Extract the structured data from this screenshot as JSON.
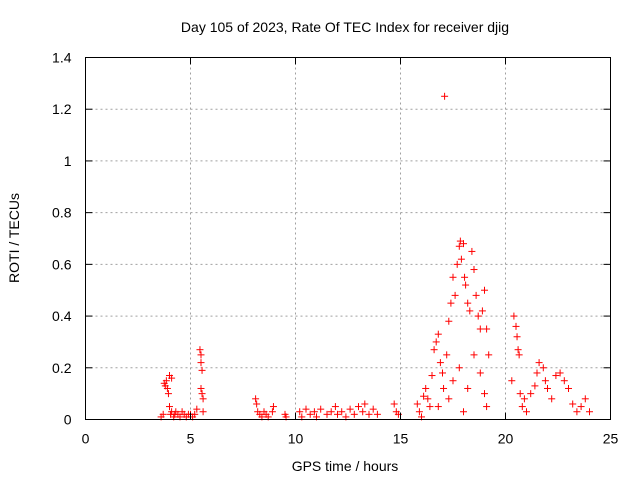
{
  "chart_data": {
    "type": "scatter",
    "title": "Day 105 of 2023, Rate Of TEC Index for receiver djig",
    "xlabel": "GPS time / hours",
    "ylabel": "ROTI / TECUs",
    "xlim": [
      0,
      25
    ],
    "ylim": [
      0,
      1.4
    ],
    "x_ticks": [
      "0",
      "5",
      "10",
      "15",
      "20",
      "25"
    ],
    "y_ticks": [
      "0",
      "0.2",
      "0.4",
      "0.6",
      "0.8",
      "1",
      "1.2",
      "1.4"
    ],
    "grid": true,
    "marker": "+",
    "color": "#ff0000",
    "series": [
      {
        "points": [
          [
            3.6,
            0.01
          ],
          [
            3.7,
            0.02
          ],
          [
            3.75,
            0.14
          ],
          [
            3.8,
            0.13
          ],
          [
            3.85,
            0.15
          ],
          [
            3.9,
            0.12
          ],
          [
            3.95,
            0.1
          ],
          [
            4.0,
            0.17
          ],
          [
            4.0,
            0.05
          ],
          [
            4.05,
            0.02
          ],
          [
            4.1,
            0.16
          ],
          [
            4.1,
            0.03
          ],
          [
            4.2,
            0.01
          ],
          [
            4.25,
            0.02
          ],
          [
            4.3,
            0.03
          ],
          [
            4.4,
            0.02
          ],
          [
            4.5,
            0.01
          ],
          [
            4.6,
            0.03
          ],
          [
            4.7,
            0.02
          ],
          [
            4.8,
            0.01
          ],
          [
            4.9,
            0.02
          ],
          [
            5.0,
            0.02
          ],
          [
            5.1,
            0.01
          ],
          [
            5.2,
            0.02
          ],
          [
            5.3,
            0.04
          ],
          [
            5.45,
            0.27
          ],
          [
            5.5,
            0.25
          ],
          [
            5.5,
            0.22
          ],
          [
            5.55,
            0.19
          ],
          [
            5.5,
            0.12
          ],
          [
            5.55,
            0.1
          ],
          [
            5.6,
            0.08
          ],
          [
            5.6,
            0.03
          ],
          [
            8.1,
            0.08
          ],
          [
            8.15,
            0.06
          ],
          [
            8.2,
            0.03
          ],
          [
            8.3,
            0.02
          ],
          [
            8.4,
            0.01
          ],
          [
            8.5,
            0.03
          ],
          [
            8.6,
            0.02
          ],
          [
            8.7,
            0.01
          ],
          [
            8.9,
            0.03
          ],
          [
            8.95,
            0.05
          ],
          [
            9.5,
            0.02
          ],
          [
            9.55,
            0.01
          ],
          [
            10.2,
            0.03
          ],
          [
            10.3,
            0.01
          ],
          [
            10.5,
            0.04
          ],
          [
            10.7,
            0.02
          ],
          [
            10.9,
            0.03
          ],
          [
            11.0,
            0.01
          ],
          [
            11.2,
            0.04
          ],
          [
            11.5,
            0.02
          ],
          [
            11.7,
            0.03
          ],
          [
            11.9,
            0.05
          ],
          [
            12.0,
            0.02
          ],
          [
            12.2,
            0.03
          ],
          [
            12.4,
            0.01
          ],
          [
            12.6,
            0.04
          ],
          [
            12.8,
            0.02
          ],
          [
            13.0,
            0.05
          ],
          [
            13.2,
            0.03
          ],
          [
            13.3,
            0.06
          ],
          [
            13.5,
            0.02
          ],
          [
            13.7,
            0.04
          ],
          [
            13.9,
            0.02
          ],
          [
            14.7,
            0.06
          ],
          [
            14.8,
            0.03
          ],
          [
            14.9,
            0.02
          ],
          [
            15.8,
            0.06
          ],
          [
            15.9,
            0.03
          ],
          [
            16.0,
            0.01
          ],
          [
            16.1,
            0.09
          ],
          [
            16.2,
            0.12
          ],
          [
            16.3,
            0.08
          ],
          [
            16.4,
            0.05
          ],
          [
            16.5,
            0.17
          ],
          [
            16.6,
            0.27
          ],
          [
            16.7,
            0.3
          ],
          [
            16.8,
            0.33
          ],
          [
            16.9,
            0.22
          ],
          [
            17.0,
            0.18
          ],
          [
            17.05,
            0.12
          ],
          [
            17.1,
            1.25
          ],
          [
            17.2,
            0.25
          ],
          [
            17.3,
            0.38
          ],
          [
            17.4,
            0.45
          ],
          [
            17.5,
            0.55
          ],
          [
            17.6,
            0.48
          ],
          [
            17.7,
            0.6
          ],
          [
            17.8,
            0.67
          ],
          [
            17.85,
            0.69
          ],
          [
            17.9,
            0.62
          ],
          [
            18.0,
            0.68
          ],
          [
            18.05,
            0.55
          ],
          [
            18.1,
            0.52
          ],
          [
            18.2,
            0.45
          ],
          [
            18.3,
            0.42
          ],
          [
            18.4,
            0.65
          ],
          [
            18.5,
            0.58
          ],
          [
            18.6,
            0.48
          ],
          [
            18.7,
            0.4
          ],
          [
            18.8,
            0.35
          ],
          [
            18.9,
            0.42
          ],
          [
            19.0,
            0.5
          ],
          [
            19.1,
            0.35
          ],
          [
            19.2,
            0.25
          ],
          [
            17.5,
            0.15
          ],
          [
            17.8,
            0.2
          ],
          [
            18.2,
            0.12
          ],
          [
            18.5,
            0.25
          ],
          [
            18.8,
            0.18
          ],
          [
            19.0,
            0.1
          ],
          [
            19.1,
            0.05
          ],
          [
            16.8,
            0.05
          ],
          [
            17.3,
            0.08
          ],
          [
            18.0,
            0.03
          ],
          [
            20.3,
            0.15
          ],
          [
            20.4,
            0.4
          ],
          [
            20.5,
            0.36
          ],
          [
            20.55,
            0.32
          ],
          [
            20.6,
            0.27
          ],
          [
            20.65,
            0.25
          ],
          [
            20.7,
            0.1
          ],
          [
            20.8,
            0.05
          ],
          [
            20.9,
            0.08
          ],
          [
            21.0,
            0.03
          ],
          [
            21.2,
            0.1
          ],
          [
            21.4,
            0.13
          ],
          [
            21.5,
            0.18
          ],
          [
            21.6,
            0.22
          ],
          [
            21.8,
            0.2
          ],
          [
            21.9,
            0.15
          ],
          [
            22.0,
            0.12
          ],
          [
            22.2,
            0.08
          ],
          [
            22.4,
            0.17
          ],
          [
            22.6,
            0.18
          ],
          [
            22.8,
            0.15
          ],
          [
            23.0,
            0.12
          ],
          [
            23.2,
            0.06
          ],
          [
            23.4,
            0.03
          ],
          [
            23.6,
            0.05
          ],
          [
            23.8,
            0.08
          ],
          [
            24.0,
            0.03
          ]
        ]
      }
    ]
  }
}
